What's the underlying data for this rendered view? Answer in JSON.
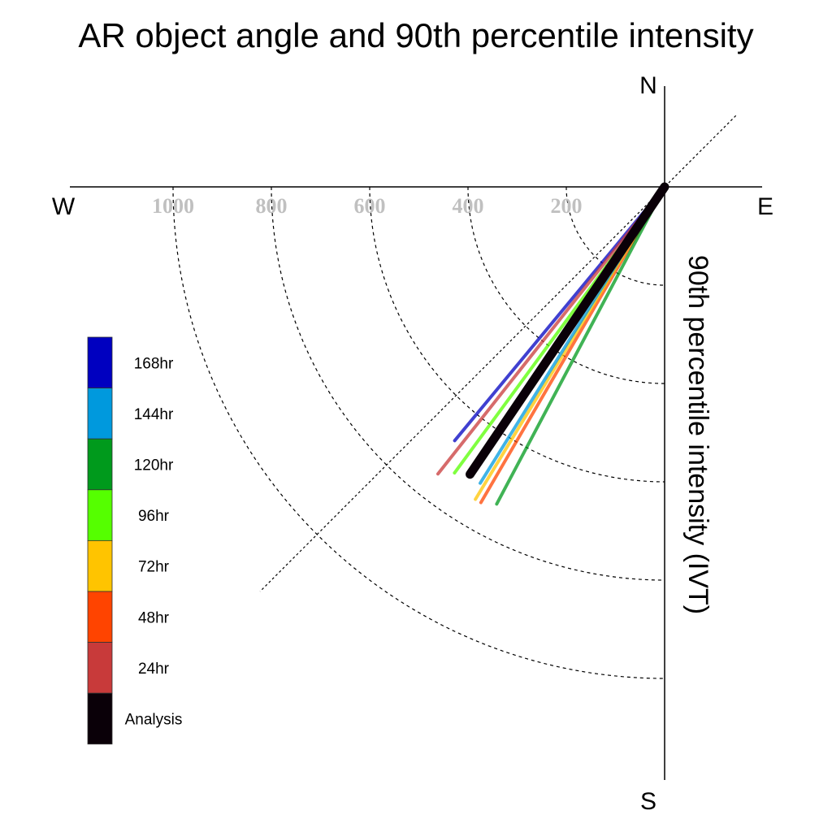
{
  "chart_data": {
    "type": "polar-line",
    "title": "AR object angle and 90th percentile intensity",
    "ylabel": "90th percentile intensity (IVT)",
    "directions": {
      "north": "N",
      "south": "S",
      "east": "E",
      "west": "W"
    },
    "radial_ticks": [
      200,
      400,
      600,
      800,
      1000
    ],
    "radial_tick_labels": [
      "200",
      "400",
      "600",
      "800",
      "1000"
    ],
    "rlim": [
      0,
      1200
    ],
    "angle_reference_line_deg": 45,
    "series": [
      {
        "name": "168hr",
        "color": "#0000c0",
        "angle_deg": 219.6,
        "intensity": 670
      },
      {
        "name": "144hr",
        "color": "#0099dd",
        "angle_deg": 211.9,
        "intensity": 710
      },
      {
        "name": "120hr",
        "color": "#009a1c",
        "angle_deg": 207.9,
        "intensity": 730
      },
      {
        "name": "96hr",
        "color": "#55ff00",
        "angle_deg": 216.3,
        "intensity": 722
      },
      {
        "name": "72hr",
        "color": "#ffc400",
        "angle_deg": 211.2,
        "intensity": 743
      },
      {
        "name": "48hr",
        "color": "#ff4400",
        "angle_deg": 210.2,
        "intensity": 743
      },
      {
        "name": "24hr",
        "color": "#c83a3a",
        "angle_deg": 218.3,
        "intensity": 744
      },
      {
        "name": "Analysis",
        "color": "#0a0008",
        "angle_deg": 214.1,
        "intensity": 706
      }
    ]
  }
}
